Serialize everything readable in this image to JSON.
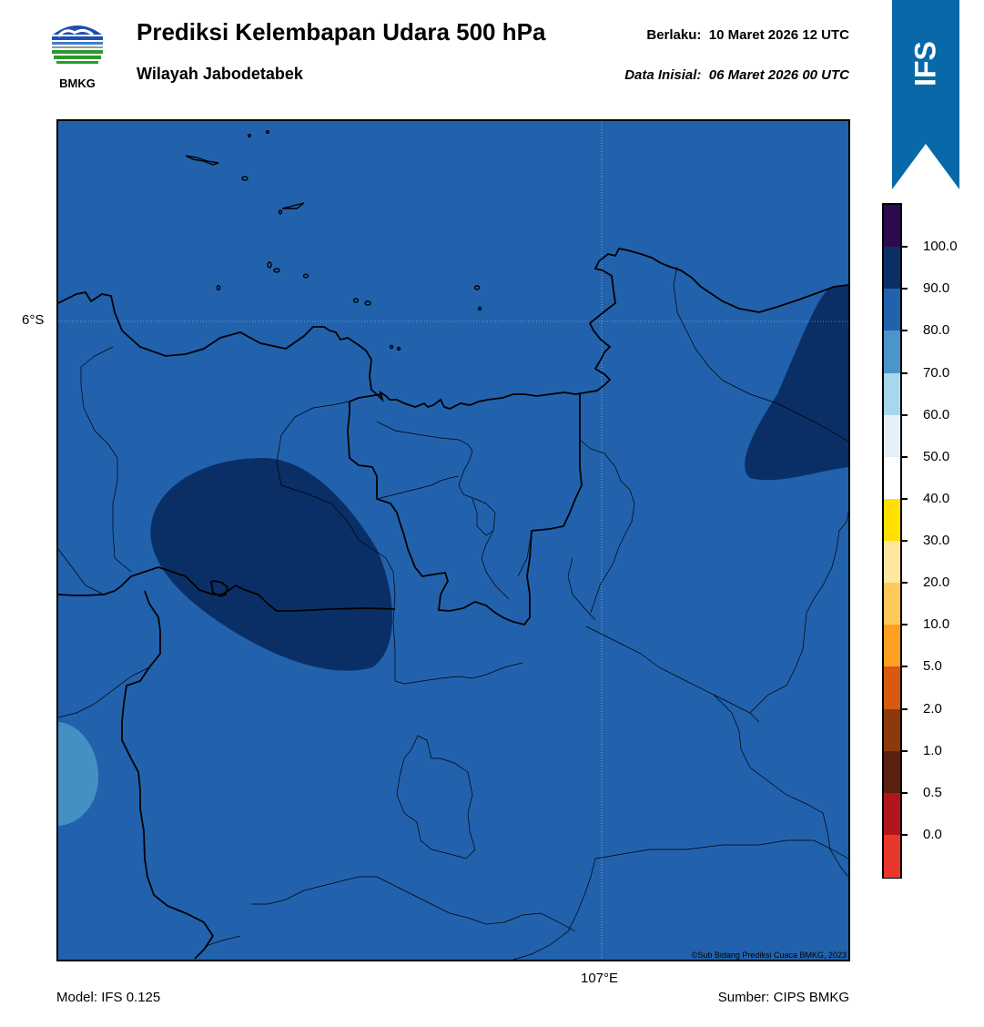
{
  "header": {
    "logo_text": "BMKG",
    "title": "Prediksi Kelembapan Udara 500 hPa",
    "subtitle": "Wilayah Jabodetabek",
    "valid_label": "Berlaku:",
    "valid_value": "10 Maret 2026 12 UTC",
    "init_label": "Data Inisial:",
    "init_value": "06 Maret 2026 00 UTC",
    "model_badge": "IFS"
  },
  "map": {
    "lat_label": "6°S",
    "lon_label": "107°E",
    "copyright": "©Sub Bidang Prediksi Cuaca BMKG, 2023",
    "background_color": "#2262ad",
    "regions": [
      {
        "name": "humidity-90-100-west",
        "color": "#0a2f66"
      },
      {
        "name": "humidity-90-100-northeast",
        "color": "#0a2f66"
      },
      {
        "name": "humidity-70-80-southwest",
        "color": "#4490c5"
      }
    ]
  },
  "colorbar": {
    "labels": [
      "100.0",
      "90.0",
      "80.0",
      "70.0",
      "60.0",
      "50.0",
      "40.0",
      "30.0",
      "20.0",
      "10.0",
      "5.0",
      "2.0",
      "1.0",
      "0.5",
      "0.0"
    ],
    "colors": [
      "#2c0a4e",
      "#0a2f66",
      "#2262ad",
      "#4a96c8",
      "#a7d7ec",
      "#e6f0f8",
      "#ffffff",
      "#ffe000",
      "#ffe6a0",
      "#ffc85a",
      "#ffa020",
      "#d85a10",
      "#8c3a0c",
      "#5a2010",
      "#b0161c",
      "#e8382c"
    ]
  },
  "footer": {
    "model": "Model: IFS 0.125",
    "source": "Sumber: CIPS BMKG"
  }
}
